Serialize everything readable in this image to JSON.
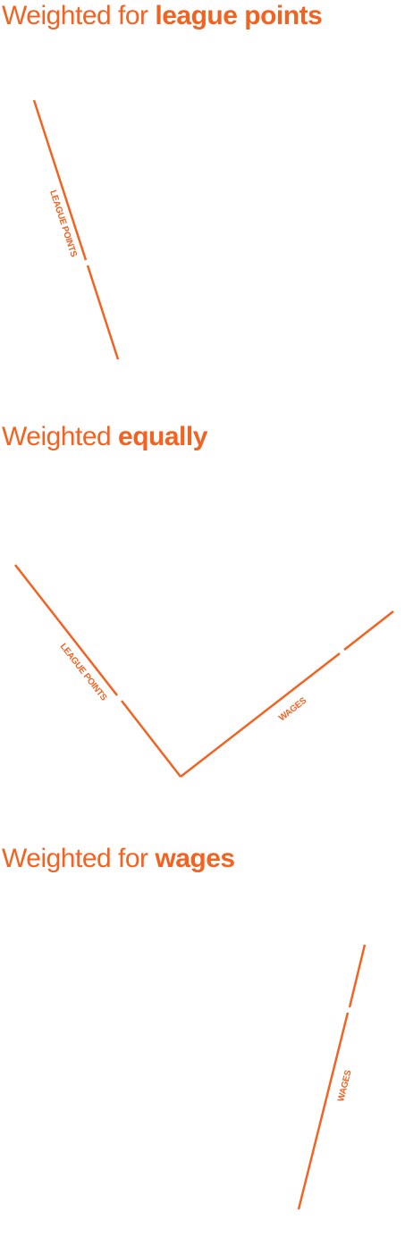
{
  "colors": {
    "accent": "#f26322"
  },
  "panels": [
    {
      "title_prefix": "Weighted for ",
      "title_emphasis": "league points",
      "labels": [
        "LEAGUE POINTS"
      ]
    },
    {
      "title_prefix": "Weighted ",
      "title_emphasis": "equally",
      "labels": [
        "LEAGUE POINTS",
        "WAGES"
      ]
    },
    {
      "title_prefix": "Weighted for ",
      "title_emphasis": "wages",
      "labels": [
        "WAGES"
      ]
    }
  ]
}
